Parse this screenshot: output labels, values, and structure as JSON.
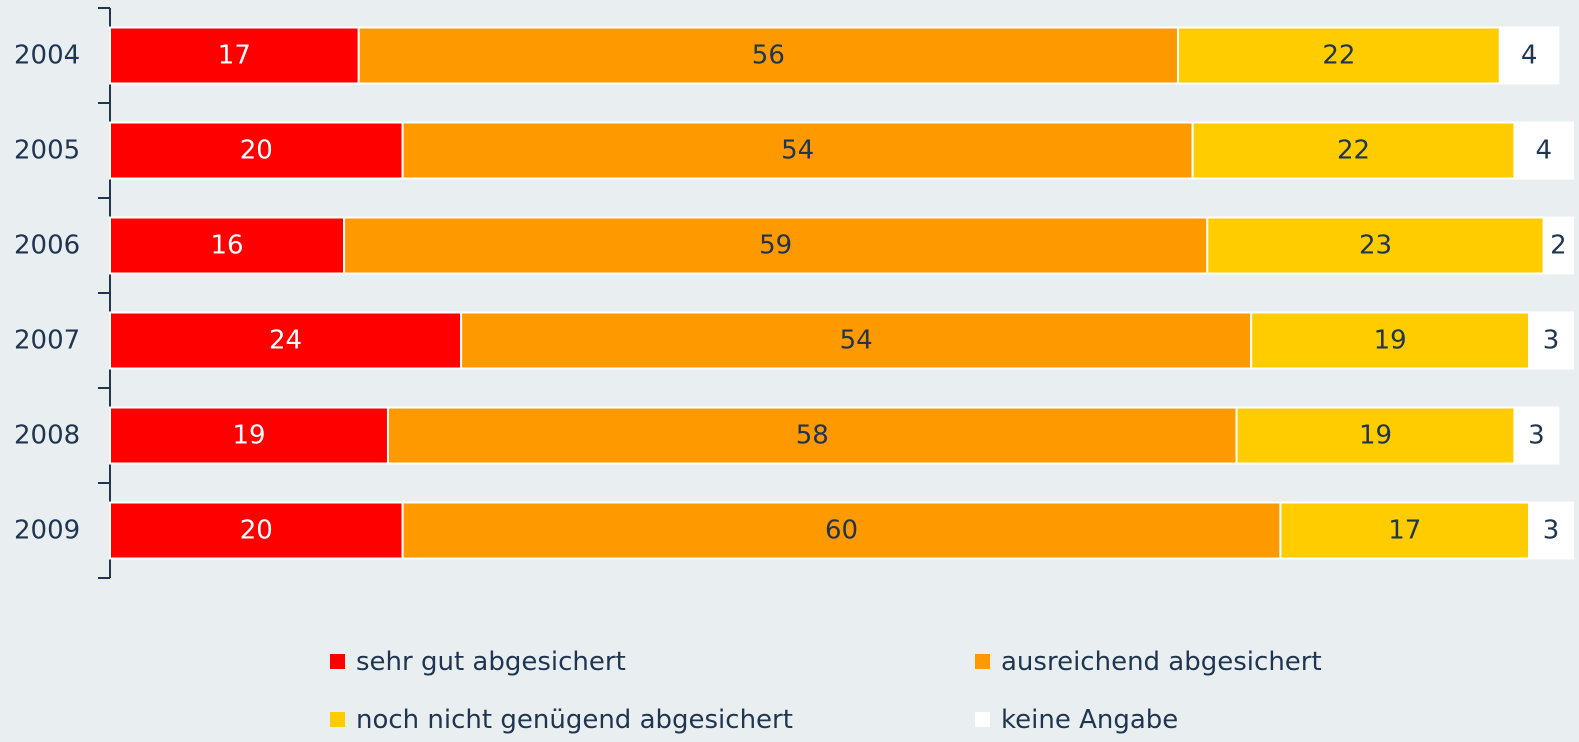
{
  "chart_data": {
    "type": "bar",
    "orientation": "horizontal",
    "stacked": true,
    "categories": [
      "2004",
      "2005",
      "2006",
      "2007",
      "2008",
      "2009"
    ],
    "series": [
      {
        "name": "sehr gut abgesichert",
        "color": "#ff0000",
        "values": [
          17,
          20,
          16,
          24,
          19,
          20
        ]
      },
      {
        "name": "ausreichend abgesichert",
        "color": "#ff9900",
        "values": [
          56,
          54,
          59,
          54,
          58,
          60
        ]
      },
      {
        "name": "noch nicht genügend abgesichert",
        "color": "#ffcc00",
        "values": [
          22,
          22,
          23,
          19,
          19,
          17
        ]
      },
      {
        "name": "keine Angabe",
        "color": "#ffffff",
        "values": [
          4,
          4,
          2,
          3,
          3,
          3
        ]
      }
    ],
    "legend": "bottom"
  }
}
